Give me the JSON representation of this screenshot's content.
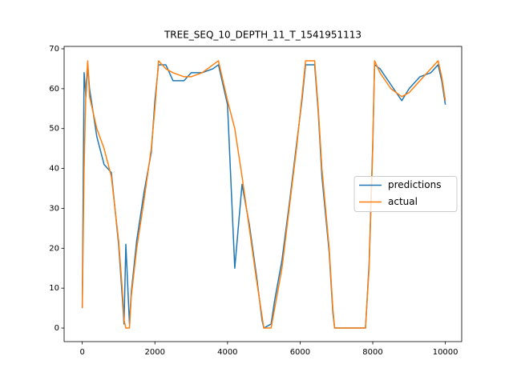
{
  "chart_data": {
    "type": "line",
    "title": "TREE_SEQ_10_DEPTH_11_T_1541951113",
    "x": [
      0,
      50,
      100,
      150,
      200,
      400,
      600,
      800,
      1000,
      1100,
      1150,
      1200,
      1300,
      1350,
      1500,
      1700,
      1900,
      2000,
      2100,
      2300,
      2500,
      2800,
      3000,
      3300,
      3600,
      3750,
      3850,
      4000,
      4200,
      4400,
      4600,
      4800,
      4950,
      5000,
      5200,
      5300,
      5500,
      5700,
      5900,
      6050,
      6150,
      6400,
      6500,
      6600,
      6800,
      6900,
      6950,
      7800,
      7900,
      8000,
      8050,
      8200,
      8500,
      8800,
      9000,
      9300,
      9600,
      9800,
      9900,
      10000
    ],
    "series": [
      {
        "name": "predictions",
        "color": "#1f77b4",
        "values": [
          5,
          64,
          58,
          66,
          60,
          48,
          41,
          39,
          21,
          8,
          1,
          21,
          1,
          9,
          22,
          34,
          44,
          57,
          66,
          66,
          62,
          62,
          64,
          64,
          65,
          66,
          62,
          56,
          15,
          36,
          26,
          13,
          2,
          0,
          1,
          7,
          17,
          31,
          46,
          57,
          66,
          66,
          54,
          38,
          19,
          4,
          0,
          0,
          16,
          46,
          66,
          65,
          61,
          57,
          60,
          63,
          64,
          66,
          62,
          56
        ]
      },
      {
        "name": "actual",
        "color": "#ff7f0e",
        "values": [
          5,
          40,
          60,
          67,
          58,
          50,
          45,
          38,
          22,
          10,
          2,
          0,
          0,
          8,
          20,
          32,
          45,
          55,
          67,
          65,
          64,
          63,
          63,
          64,
          66,
          67,
          63,
          57,
          50,
          38,
          25,
          12,
          3,
          0,
          0,
          5,
          15,
          30,
          45,
          58,
          67,
          67,
          55,
          40,
          20,
          5,
          0,
          0,
          15,
          45,
          67,
          64,
          60,
          58,
          59,
          62,
          65,
          67,
          63,
          57
        ]
      }
    ],
    "xlim": [
      -500,
      10450
    ],
    "ylim": [
      -3.4,
      70.6
    ],
    "xticks": [
      0,
      2000,
      4000,
      6000,
      8000,
      10000
    ],
    "yticks": [
      0,
      10,
      20,
      30,
      40,
      50,
      60,
      70
    ],
    "legend_loc": "center right"
  }
}
